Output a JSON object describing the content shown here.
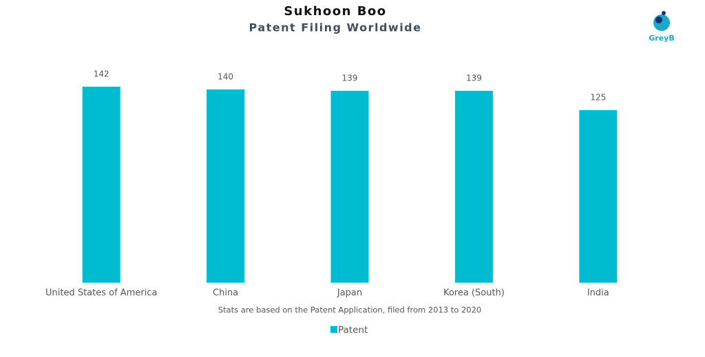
{
  "chart_data": {
    "type": "bar",
    "title": "Sukhoon Boo",
    "subtitle": "Patent Filing Worldwide",
    "categories": [
      "United States of America",
      "China",
      "Japan",
      "Korea (South)",
      "India"
    ],
    "series": [
      {
        "name": "Patent",
        "color": "#00bcd0",
        "values": [
          142,
          140,
          139,
          139,
          125
        ]
      }
    ],
    "note": "Stats are based on the Patent Application, filed from 2013 to 2020",
    "logo": "GreyB"
  }
}
